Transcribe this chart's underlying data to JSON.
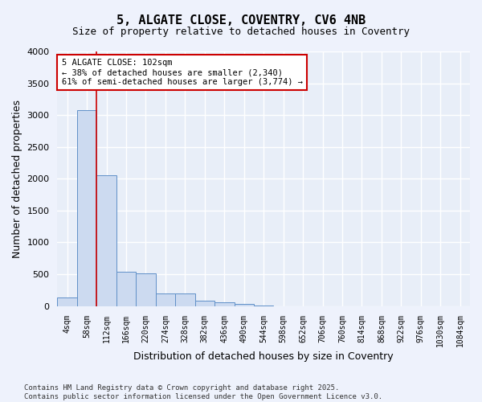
{
  "title": "5, ALGATE CLOSE, COVENTRY, CV6 4NB",
  "subtitle": "Size of property relative to detached houses in Coventry",
  "xlabel": "Distribution of detached houses by size in Coventry",
  "ylabel": "Number of detached properties",
  "bar_color": "#ccdaf0",
  "bar_edge_color": "#6090c8",
  "background_color": "#e8eef8",
  "grid_color": "#ffffff",
  "categories": [
    "4sqm",
    "58sqm",
    "112sqm",
    "166sqm",
    "220sqm",
    "274sqm",
    "328sqm",
    "382sqm",
    "436sqm",
    "490sqm",
    "544sqm",
    "598sqm",
    "652sqm",
    "706sqm",
    "760sqm",
    "814sqm",
    "868sqm",
    "922sqm",
    "976sqm",
    "1030sqm",
    "1084sqm"
  ],
  "values": [
    130,
    3080,
    2060,
    540,
    510,
    200,
    200,
    85,
    55,
    30,
    5,
    0,
    0,
    0,
    0,
    0,
    0,
    0,
    0,
    0,
    0
  ],
  "ylim": [
    0,
    4000
  ],
  "yticks": [
    0,
    500,
    1000,
    1500,
    2000,
    2500,
    3000,
    3500,
    4000
  ],
  "property_line_x": 1.5,
  "annotation_text": "5 ALGATE CLOSE: 102sqm\n← 38% of detached houses are smaller (2,340)\n61% of semi-detached houses are larger (3,774) →",
  "annotation_box_color": "#ffffff",
  "annotation_box_edge": "#cc0000",
  "vline_color": "#cc0000",
  "footer_line1": "Contains HM Land Registry data © Crown copyright and database right 2025.",
  "footer_line2": "Contains public sector information licensed under the Open Government Licence v3.0.",
  "fig_bg": "#eef2fc"
}
